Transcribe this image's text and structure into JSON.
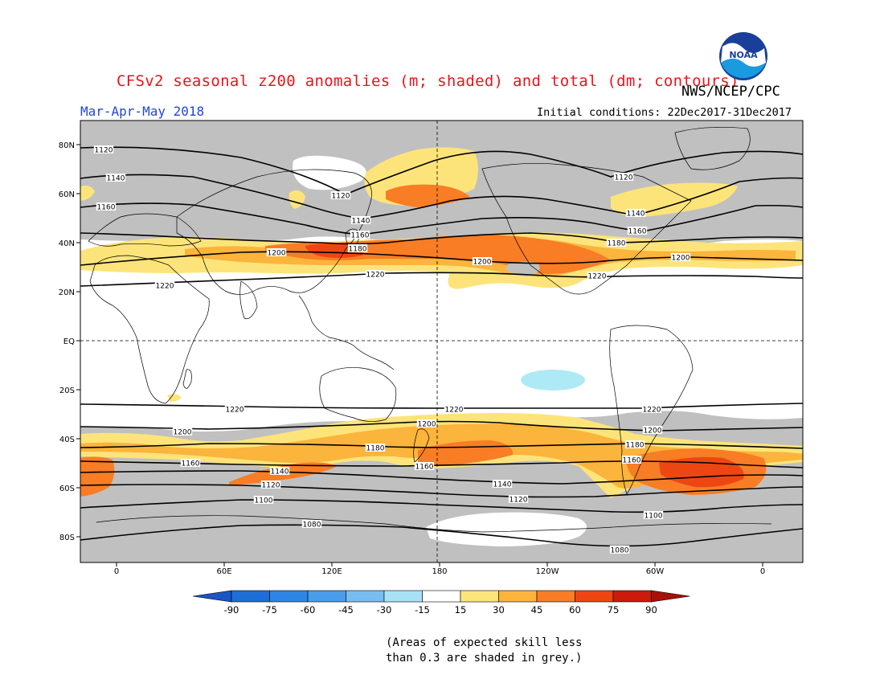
{
  "title": "CFSv2 seasonal z200 anomalies (m; shaded) and total (dm; contours)",
  "agency": "NWS/NCEP/CPC",
  "season": "Mar-Apr-May 2018",
  "initial_conditions": "Initial conditions: 22Dec2017-31Dec2017",
  "logo_name": "noaa-logo",
  "note_line1": "(Areas of expected skill less",
  "note_line2": "than 0.3 are shaded in grey.)",
  "lat_labels": [
    {
      "text": "80N",
      "lat": 80
    },
    {
      "text": "60N",
      "lat": 60
    },
    {
      "text": "40N",
      "lat": 40
    },
    {
      "text": "20N",
      "lat": 20
    },
    {
      "text": "EQ",
      "lat": 0
    },
    {
      "text": "20S",
      "lat": -20
    },
    {
      "text": "40S",
      "lat": -40
    },
    {
      "text": "60S",
      "lat": -60
    },
    {
      "text": "80S",
      "lat": -80
    }
  ],
  "lon_labels": [
    {
      "text": "0",
      "lon": 0
    },
    {
      "text": "60E",
      "lon": 60
    },
    {
      "text": "120E",
      "lon": 120
    },
    {
      "text": "180",
      "lon": 180
    },
    {
      "text": "120W",
      "lon": 240
    },
    {
      "text": "60W",
      "lon": 300
    },
    {
      "text": "0",
      "lon": 360
    }
  ],
  "colorbar": {
    "colors": [
      "#1e6ed8",
      "#2f85e6",
      "#4a9de8",
      "#78bdf0",
      "#a8e2f5",
      "#ffffff",
      "#fde47a",
      "#fbb43c",
      "#f87d24",
      "#ee4612",
      "#cc1a0c"
    ],
    "low_arrow_color": "#1a54c8",
    "high_arrow_color": "#a81008",
    "labels": [
      "-90",
      "-75",
      "-60",
      "-45",
      "-30",
      "-15",
      "15",
      "30",
      "45",
      "60",
      "75",
      "90"
    ]
  },
  "colors": {
    "grey_low_skill": "#c0c0c0",
    "light_anomaly": "#fde47a",
    "moderate_anomaly": "#fbb43c",
    "strong_anomaly": "#f87d24",
    "very_strong_anomaly": "#ee4612",
    "negative_anomaly": "#aeeaf5",
    "title_red": "#e8151b",
    "season_blue": "#1f47d6"
  },
  "contours": [
    {
      "label": "1120",
      "label_positions": [
        [
          129,
          186
        ],
        [
          424,
          243
        ],
        [
          776,
          220
        ]
      ]
    },
    {
      "label": "1140",
      "label_positions": [
        [
          144,
          221
        ],
        [
          449,
          274
        ],
        [
          791,
          265
        ]
      ]
    },
    {
      "label": "1160",
      "label_positions": [
        [
          132,
          257
        ],
        [
          448,
          292
        ],
        [
          793,
          287
        ]
      ]
    },
    {
      "label": "1180",
      "label_positions": [
        [
          445,
          309
        ],
        [
          767,
          302
        ]
      ]
    },
    {
      "label": "1200",
      "label_positions": [
        [
          344,
          314
        ],
        [
          600,
          325
        ],
        [
          847,
          320
        ]
      ]
    },
    {
      "label": "1220",
      "label_positions": [
        [
          205,
          355
        ],
        [
          467,
          341
        ],
        [
          743,
          343
        ]
      ]
    },
    {
      "label": "1220",
      "label_positions": [
        [
          292,
          509
        ],
        [
          565,
          509
        ],
        [
          811,
          509
        ]
      ]
    },
    {
      "label": "1200",
      "label_positions": [
        [
          227,
          537
        ],
        [
          531,
          527
        ],
        [
          812,
          535
        ]
      ]
    },
    {
      "label": "1180",
      "label_positions": [
        [
          467,
          557
        ],
        [
          790,
          553
        ]
      ]
    },
    {
      "label": "1160",
      "label_positions": [
        [
          237,
          576
        ],
        [
          528,
          580
        ],
        [
          786,
          572
        ]
      ]
    },
    {
      "label": "1140",
      "label_positions": [
        [
          348,
          586
        ],
        [
          625,
          602
        ]
      ]
    },
    {
      "label": "1120",
      "label_positions": [
        [
          337,
          603
        ],
        [
          645,
          621
        ]
      ]
    },
    {
      "label": "1100",
      "label_positions": [
        [
          328,
          622
        ],
        [
          813,
          641
        ]
      ]
    },
    {
      "label": "1080",
      "label_positions": [
        [
          388,
          652
        ],
        [
          771,
          684
        ]
      ]
    }
  ]
}
